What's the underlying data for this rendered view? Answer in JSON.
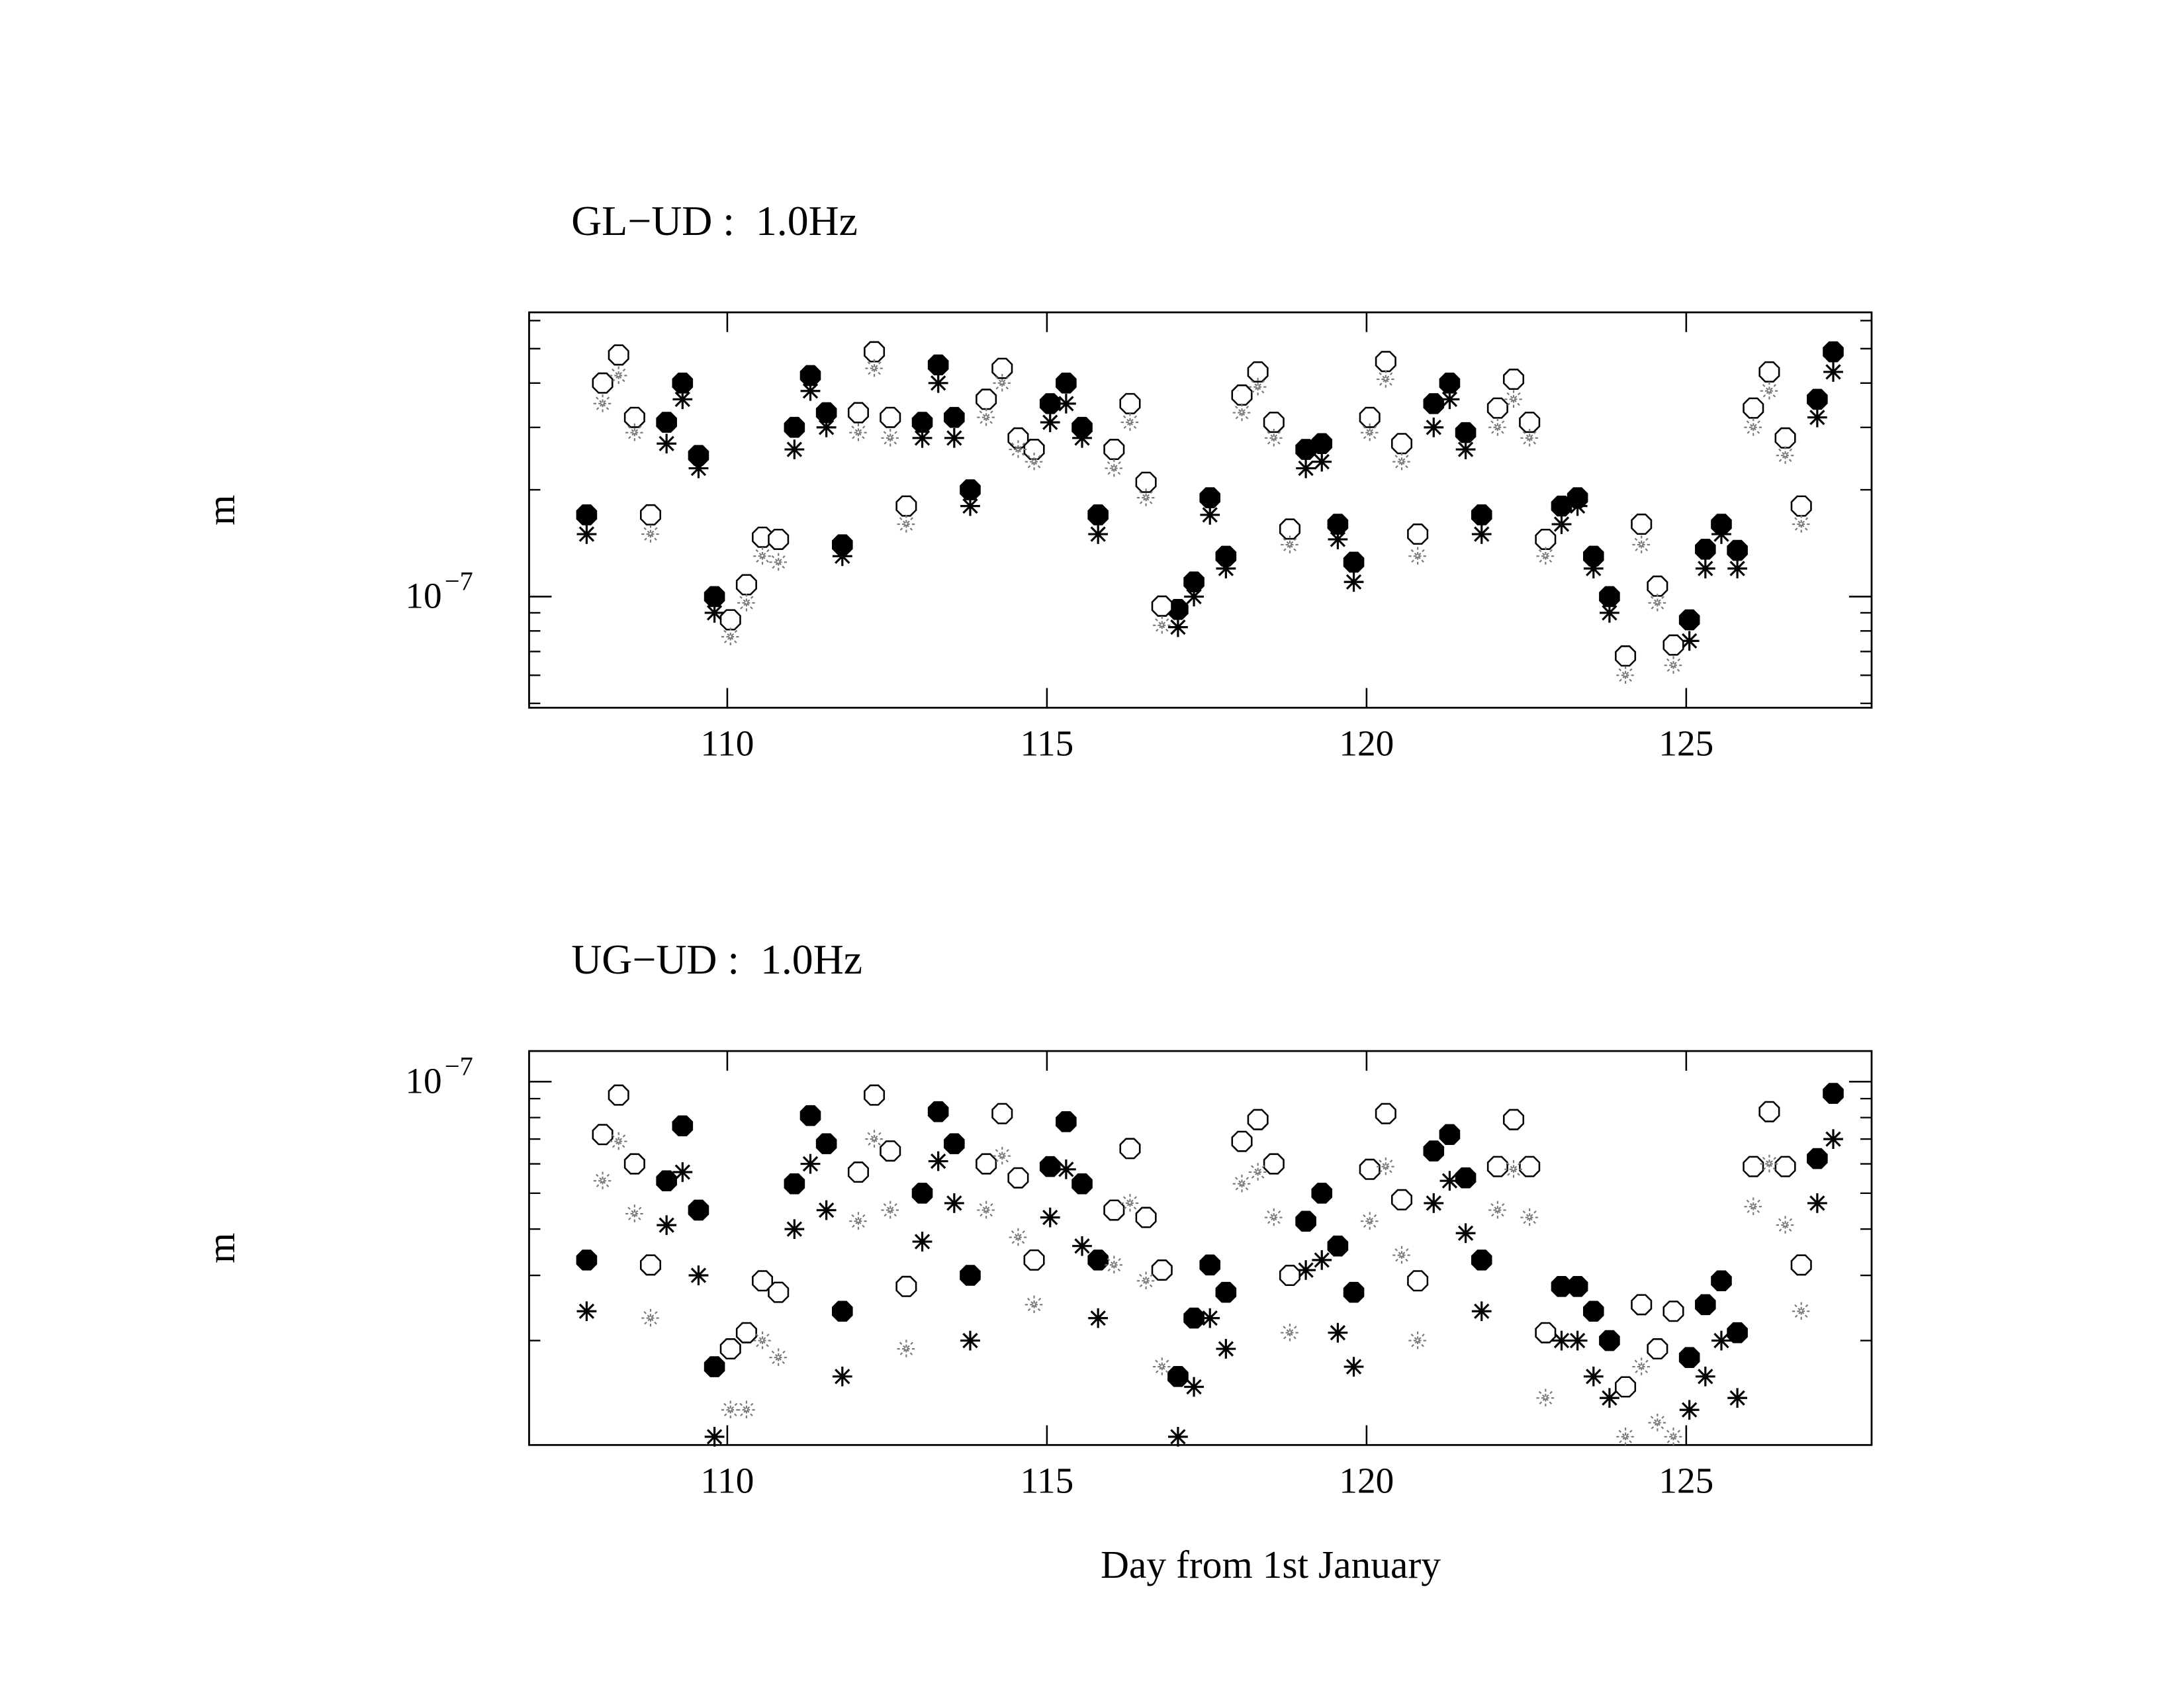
{
  "chart_data": [
    {
      "type": "scatter",
      "title": "GL−UD :  1.0Hz",
      "y_label": "m",
      "log_y": true,
      "xlim": [
        106.9,
        127.9
      ],
      "xticks": [
        110,
        115,
        120,
        125
      ],
      "ylim": [
        4.86e-08,
        6.33e-07
      ],
      "yticks": [
        {
          "value": 1e-07,
          "label": "10",
          "exponent": "−7"
        }
      ],
      "minor_yticks": [
        5e-08,
        6e-08,
        7e-08,
        8e-08,
        9e-08,
        2e-07,
        3e-07,
        4e-07,
        5e-07,
        6e-07
      ],
      "series": [
        {
          "marker": "filled-octagon",
          "color": "#000000",
          "x": [
            107.8,
            109.05,
            109.3,
            109.55,
            109.8,
            111.05,
            111.3,
            111.55,
            111.8,
            113.05,
            113.3,
            113.55,
            113.8,
            115.05,
            115.3,
            115.55,
            115.8,
            117.05,
            117.3,
            117.55,
            117.8,
            119.05,
            119.3,
            119.55,
            119.8,
            121.05,
            121.3,
            121.55,
            121.8,
            123.05,
            123.3,
            123.55,
            123.8,
            125.05,
            125.3,
            125.55,
            125.8,
            127.05,
            127.3
          ],
          "values": [
            1.7e-07,
            3.1e-07,
            4e-07,
            2.5e-07,
            1e-07,
            3e-07,
            4.2e-07,
            3.3e-07,
            1.4e-07,
            3.1e-07,
            4.5e-07,
            3.2e-07,
            2e-07,
            3.5e-07,
            4e-07,
            3e-07,
            1.7e-07,
            9.2e-08,
            1.1e-07,
            1.9e-07,
            1.3e-07,
            2.6e-07,
            2.7e-07,
            1.6e-07,
            1.25e-07,
            3.5e-07,
            4e-07,
            2.9e-07,
            1.7e-07,
            1.8e-07,
            1.9e-07,
            1.3e-07,
            1e-07,
            8.6e-08,
            1.36e-07,
            1.6e-07,
            1.35e-07,
            3.6e-07,
            4.9e-07
          ]
        },
        {
          "marker": "asterisk",
          "color": "#000000",
          "x": [
            107.8,
            109.05,
            109.3,
            109.55,
            109.8,
            111.05,
            111.3,
            111.55,
            111.8,
            113.05,
            113.3,
            113.55,
            113.8,
            115.05,
            115.3,
            115.55,
            115.8,
            117.05,
            117.3,
            117.55,
            117.8,
            119.05,
            119.3,
            119.55,
            119.8,
            121.05,
            121.3,
            121.55,
            121.8,
            123.05,
            123.3,
            123.55,
            123.8,
            125.05,
            125.3,
            125.55,
            125.8,
            127.05,
            127.3
          ],
          "values": [
            1.5e-07,
            2.7e-07,
            3.6e-07,
            2.3e-07,
            9e-08,
            2.6e-07,
            3.8e-07,
            3e-07,
            1.3e-07,
            2.8e-07,
            4e-07,
            2.8e-07,
            1.8e-07,
            3.1e-07,
            3.5e-07,
            2.8e-07,
            1.5e-07,
            8.2e-08,
            1e-07,
            1.7e-07,
            1.2e-07,
            2.3e-07,
            2.4e-07,
            1.45e-07,
            1.1e-07,
            3e-07,
            3.6e-07,
            2.6e-07,
            1.5e-07,
            1.6e-07,
            1.8e-07,
            1.2e-07,
            9e-08,
            7.5e-08,
            1.2e-07,
            1.5e-07,
            1.2e-07,
            3.2e-07,
            4.3e-07
          ]
        },
        {
          "marker": "open-octagon",
          "color": "#000000",
          "x": [
            108.05,
            108.3,
            108.55,
            108.8,
            110.05,
            110.3,
            110.55,
            110.8,
            112.05,
            112.3,
            112.55,
            112.8,
            114.05,
            114.3,
            114.55,
            114.8,
            116.05,
            116.3,
            116.55,
            116.8,
            118.05,
            118.3,
            118.55,
            118.8,
            120.05,
            120.3,
            120.55,
            120.8,
            122.05,
            122.3,
            122.55,
            122.8,
            124.05,
            124.3,
            124.55,
            124.8,
            126.05,
            126.3,
            126.55,
            126.8
          ],
          "values": [
            4e-07,
            4.8e-07,
            3.2e-07,
            1.7e-07,
            8.6e-08,
            1.08e-07,
            1.47e-07,
            1.45e-07,
            3.3e-07,
            4.9e-07,
            3.2e-07,
            1.8e-07,
            3.6e-07,
            4.4e-07,
            2.8e-07,
            2.6e-07,
            2.6e-07,
            3.5e-07,
            2.1e-07,
            9.4e-08,
            3.7e-07,
            4.3e-07,
            3.1e-07,
            1.55e-07,
            3.2e-07,
            4.6e-07,
            2.7e-07,
            1.5e-07,
            3.4e-07,
            4.1e-07,
            3.1e-07,
            1.45e-07,
            6.8e-08,
            1.6e-07,
            1.07e-07,
            7.3e-08,
            3.4e-07,
            4.3e-07,
            2.8e-07,
            1.8e-07
          ]
        },
        {
          "marker": "light-asterisk",
          "color": "#777777",
          "x": [
            108.05,
            108.3,
            108.55,
            108.8,
            110.05,
            110.3,
            110.55,
            110.8,
            112.05,
            112.3,
            112.55,
            112.8,
            114.05,
            114.3,
            114.55,
            114.8,
            116.05,
            116.3,
            116.55,
            116.8,
            118.05,
            118.3,
            118.55,
            118.8,
            120.05,
            120.3,
            120.55,
            120.8,
            122.05,
            122.3,
            122.55,
            122.8,
            124.05,
            124.3,
            124.55,
            124.8,
            126.05,
            126.3,
            126.55,
            126.8
          ],
          "values": [
            3.5e-07,
            4.2e-07,
            2.9e-07,
            1.5e-07,
            7.7e-08,
            9.6e-08,
            1.3e-07,
            1.25e-07,
            2.9e-07,
            4.4e-07,
            2.8e-07,
            1.6e-07,
            3.2e-07,
            4e-07,
            2.6e-07,
            2.4e-07,
            2.3e-07,
            3.1e-07,
            1.9e-07,
            8.3e-08,
            3.3e-07,
            3.9e-07,
            2.8e-07,
            1.4e-07,
            2.9e-07,
            4.1e-07,
            2.4e-07,
            1.3e-07,
            3e-07,
            3.6e-07,
            2.8e-07,
            1.3e-07,
            6e-08,
            1.4e-07,
            9.6e-08,
            6.4e-08,
            3e-07,
            3.8e-07,
            2.5e-07,
            1.6e-07
          ]
        }
      ]
    },
    {
      "type": "scatter",
      "title": "UG−UD :  1.0Hz",
      "y_label": "m",
      "x_label": "Day from 1st January",
      "log_y": true,
      "xlim": [
        106.9,
        127.9
      ],
      "xticks": [
        110,
        115,
        120,
        125
      ],
      "ylim": [
        1.045e-08,
        1.21e-07
      ],
      "yticks": [
        {
          "value": 1e-07,
          "label": "10",
          "exponent": "−7"
        }
      ],
      "minor_yticks": [
        2e-08,
        3e-08,
        4e-08,
        5e-08,
        6e-08,
        7e-08,
        8e-08,
        9e-08
      ],
      "series": [
        {
          "marker": "filled-octagon",
          "color": "#000000",
          "x": [
            107.8,
            109.05,
            109.3,
            109.55,
            109.8,
            111.05,
            111.3,
            111.55,
            111.8,
            113.05,
            113.3,
            113.55,
            113.8,
            115.05,
            115.3,
            115.55,
            115.8,
            117.05,
            117.3,
            117.55,
            117.8,
            119.05,
            119.3,
            119.55,
            119.8,
            121.05,
            121.3,
            121.55,
            121.8,
            123.05,
            123.3,
            123.55,
            123.8,
            125.05,
            125.3,
            125.55,
            125.8,
            127.05,
            127.3
          ],
          "values": [
            3.3e-08,
            5.4e-08,
            7.6e-08,
            4.5e-08,
            1.7e-08,
            5.3e-08,
            8.1e-08,
            6.8e-08,
            2.4e-08,
            5e-08,
            8.3e-08,
            6.8e-08,
            3e-08,
            5.9e-08,
            7.8e-08,
            5.3e-08,
            3.3e-08,
            1.6e-08,
            2.3e-08,
            3.2e-08,
            2.7e-08,
            4.2e-08,
            5e-08,
            3.6e-08,
            2.7e-08,
            6.5e-08,
            7.2e-08,
            5.5e-08,
            3.3e-08,
            2.8e-08,
            2.8e-08,
            2.4e-08,
            2e-08,
            1.8e-08,
            2.5e-08,
            2.9e-08,
            2.1e-08,
            6.2e-08,
            9.3e-08
          ]
        },
        {
          "marker": "asterisk",
          "color": "#000000",
          "x": [
            107.8,
            109.05,
            109.3,
            109.55,
            109.8,
            111.05,
            111.3,
            111.55,
            111.8,
            113.05,
            113.3,
            113.55,
            113.8,
            115.05,
            115.3,
            115.55,
            115.8,
            117.05,
            117.3,
            117.55,
            117.8,
            119.05,
            119.3,
            119.55,
            119.8,
            121.05,
            121.3,
            121.55,
            121.8,
            123.05,
            123.3,
            123.55,
            123.8,
            125.05,
            125.3,
            125.55,
            125.8,
            127.05,
            127.3
          ],
          "values": [
            2.4e-08,
            4.1e-08,
            5.7e-08,
            3e-08,
            1.1e-08,
            4e-08,
            6e-08,
            4.5e-08,
            1.6e-08,
            3.7e-08,
            6.1e-08,
            4.7e-08,
            2e-08,
            4.3e-08,
            5.8e-08,
            3.6e-08,
            2.3e-08,
            1.1e-08,
            1.5e-08,
            2.3e-08,
            1.9e-08,
            3.1e-08,
            3.3e-08,
            2.1e-08,
            1.7e-08,
            4.7e-08,
            5.4e-08,
            3.9e-08,
            2.4e-08,
            2e-08,
            2e-08,
            1.6e-08,
            1.4e-08,
            1.3e-08,
            1.6e-08,
            2e-08,
            1.4e-08,
            4.7e-08,
            7e-08
          ]
        },
        {
          "marker": "open-octagon",
          "color": "#000000",
          "x": [
            108.05,
            108.3,
            108.55,
            108.8,
            110.05,
            110.3,
            110.55,
            110.8,
            112.05,
            112.3,
            112.55,
            112.8,
            114.05,
            114.3,
            114.55,
            114.8,
            116.05,
            116.3,
            116.55,
            116.8,
            118.05,
            118.3,
            118.55,
            118.8,
            120.05,
            120.3,
            120.55,
            120.8,
            122.05,
            122.3,
            122.55,
            122.8,
            124.05,
            124.3,
            124.55,
            124.8,
            126.05,
            126.3,
            126.55,
            126.8
          ],
          "values": [
            7.2e-08,
            9.2e-08,
            6e-08,
            3.2e-08,
            1.9e-08,
            2.1e-08,
            2.9e-08,
            2.7e-08,
            5.7e-08,
            9.2e-08,
            6.5e-08,
            2.8e-08,
            6e-08,
            8.2e-08,
            5.5e-08,
            3.3e-08,
            4.5e-08,
            6.6e-08,
            4.3e-08,
            3.1e-08,
            6.9e-08,
            7.9e-08,
            6e-08,
            3e-08,
            5.8e-08,
            8.2e-08,
            4.8e-08,
            2.9e-08,
            5.9e-08,
            7.9e-08,
            5.9e-08,
            2.1e-08,
            1.5e-08,
            2.5e-08,
            1.9e-08,
            2.4e-08,
            5.9e-08,
            8.3e-08,
            5.9e-08,
            3.2e-08
          ]
        },
        {
          "marker": "light-asterisk",
          "color": "#777777",
          "x": [
            108.05,
            108.3,
            108.55,
            108.8,
            110.05,
            110.3,
            110.55,
            110.8,
            112.05,
            112.3,
            112.55,
            112.8,
            114.05,
            114.3,
            114.55,
            114.8,
            116.05,
            116.3,
            116.55,
            116.8,
            118.05,
            118.3,
            118.55,
            118.8,
            120.05,
            120.3,
            120.55,
            120.8,
            122.05,
            122.3,
            122.55,
            122.8,
            124.05,
            124.3,
            124.55,
            124.8,
            126.05,
            126.3,
            126.55,
            126.8
          ],
          "values": [
            5.4e-08,
            6.9e-08,
            4.4e-08,
            2.3e-08,
            1.3e-08,
            1.3e-08,
            2e-08,
            1.8e-08,
            4.2e-08,
            7e-08,
            4.5e-08,
            1.9e-08,
            4.5e-08,
            6.3e-08,
            3.8e-08,
            2.5e-08,
            3.2e-08,
            4.7e-08,
            2.9e-08,
            1.7e-08,
            5.3e-08,
            5.7e-08,
            4.3e-08,
            2.1e-08,
            4.2e-08,
            5.9e-08,
            3.4e-08,
            2e-08,
            4.5e-08,
            5.8e-08,
            4.3e-08,
            1.4e-08,
            1.1e-08,
            1.7e-08,
            1.2e-08,
            1.1e-08,
            4.6e-08,
            6e-08,
            4.1e-08,
            2.4e-08
          ]
        }
      ]
    }
  ]
}
